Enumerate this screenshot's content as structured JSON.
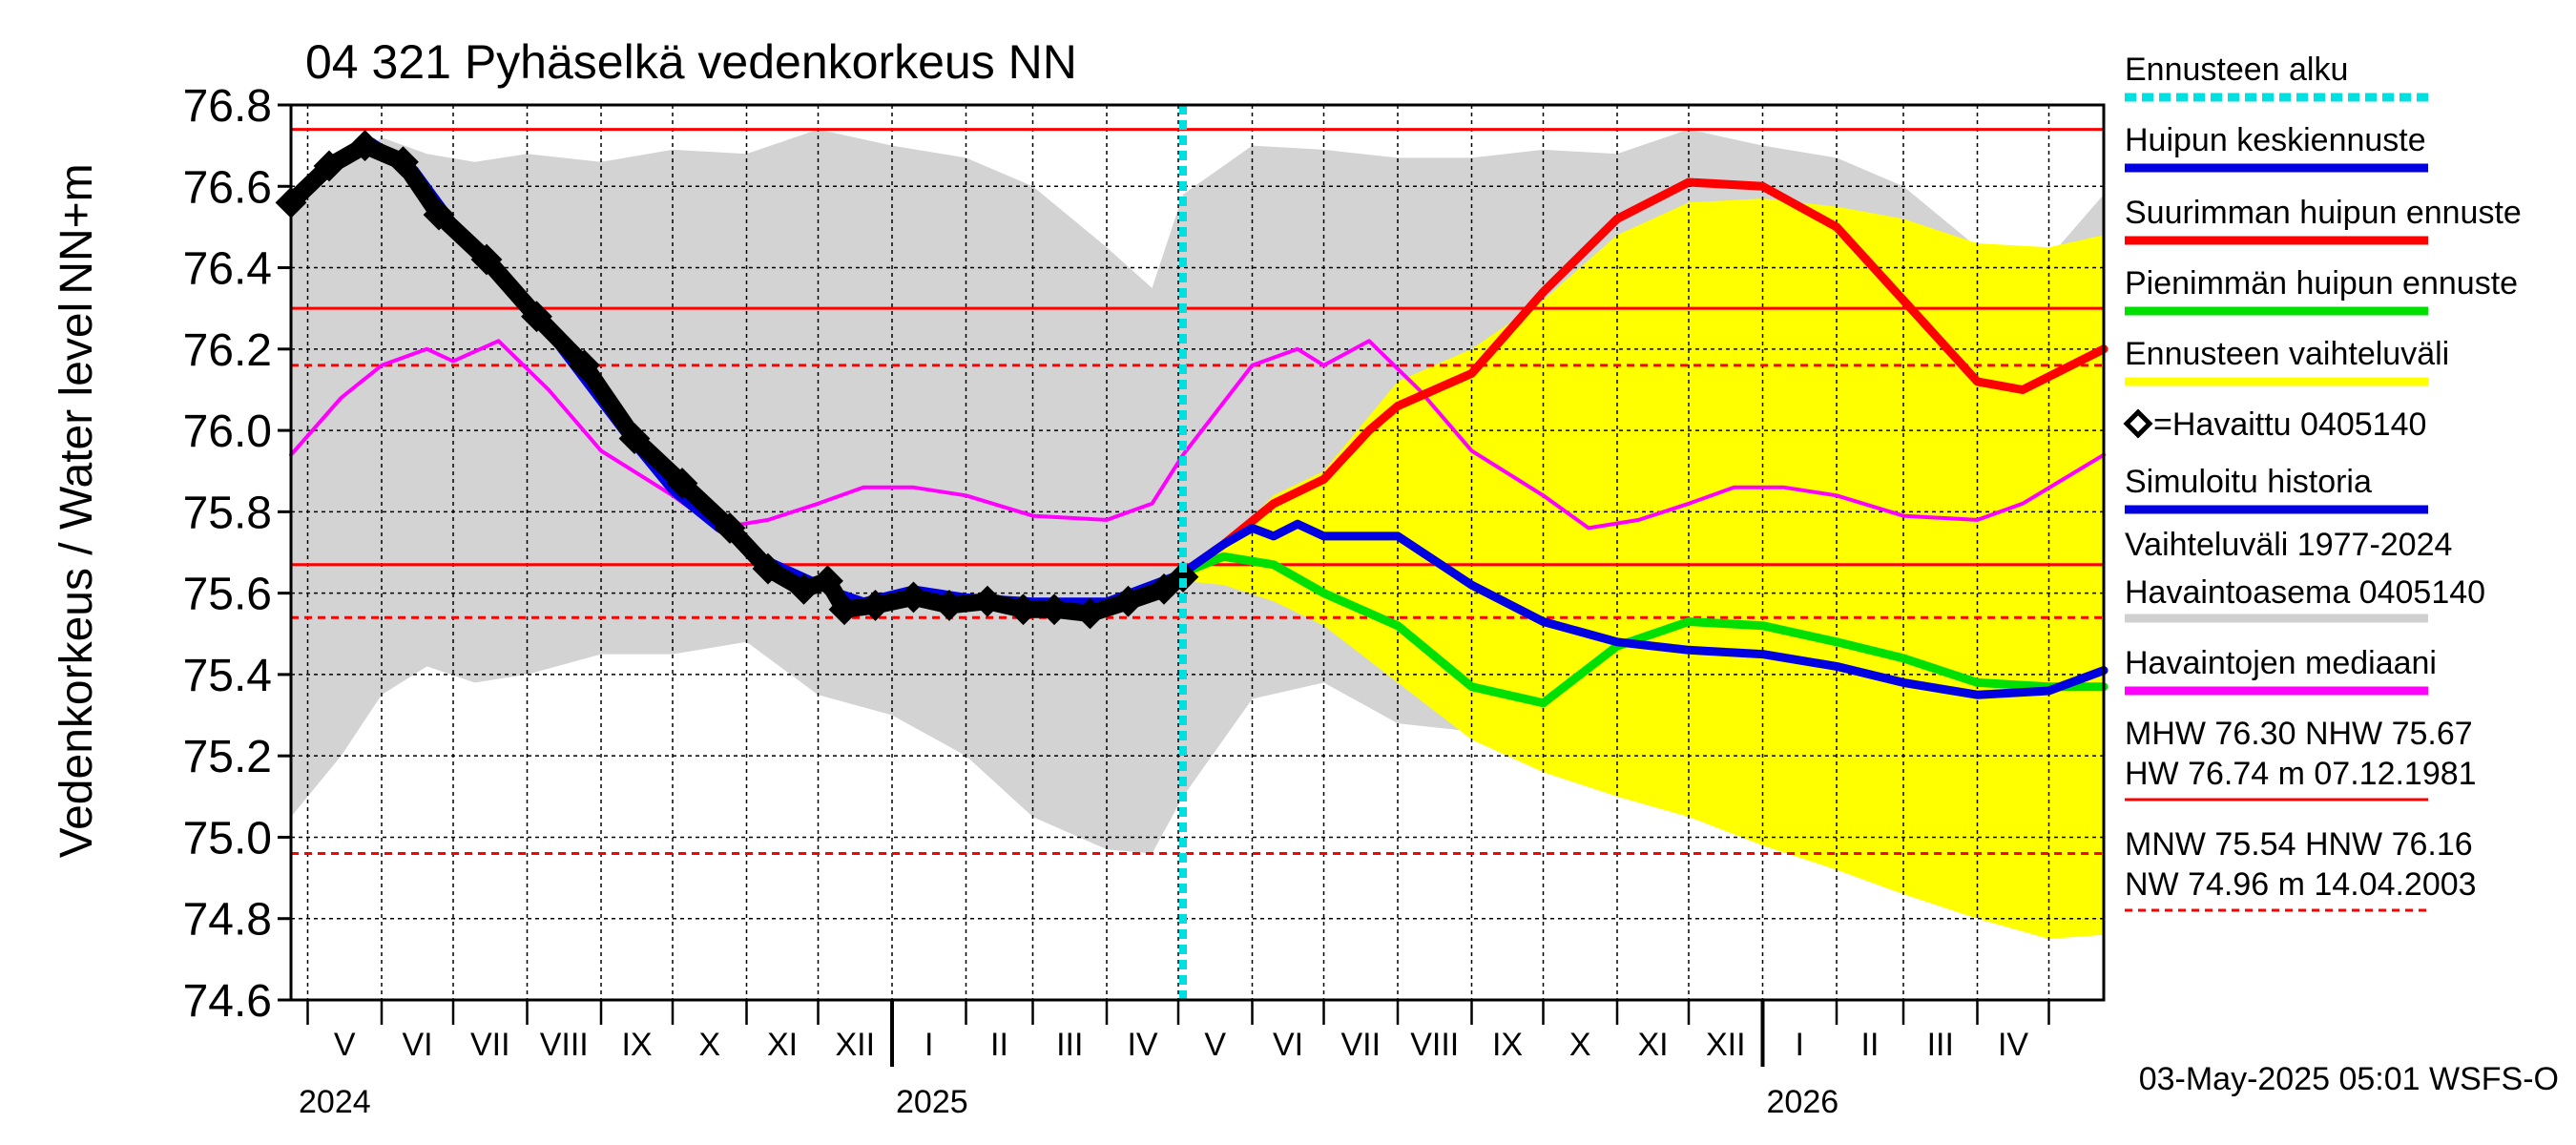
{
  "chart_data": {
    "type": "line",
    "title": "04 321 Pyhäselkä vedenkorkeus NN",
    "ylabel_main": "Vedenkorkeus / Water level",
    "ylabel_unit": "NN+m",
    "ylim": [
      74.6,
      76.8
    ],
    "yticks": [
      "74.6",
      "74.8",
      "75.0",
      "75.2",
      "75.4",
      "75.6",
      "75.8",
      "76.0",
      "76.2",
      "76.4",
      "76.6",
      "76.8"
    ],
    "x_start": "2024-04-24",
    "x_end": "2026-05-24",
    "forecast_start": "2025-05-03",
    "month_labels": [
      "V",
      "VI",
      "VII",
      "VIII",
      "IX",
      "X",
      "XI",
      "XII",
      "I",
      "II",
      "III",
      "IV",
      "V",
      "VI",
      "VII",
      "VIII",
      "IX",
      "X",
      "XI",
      "XII",
      "I",
      "II",
      "III",
      "IV"
    ],
    "year_labels": [
      "2024",
      "2025",
      "2026"
    ],
    "thresholds": {
      "solid": [
        76.74,
        76.3,
        75.67
      ],
      "dashed": [
        76.16,
        75.54,
        74.96
      ]
    },
    "range_band": {
      "x": [
        "2024-04-24",
        "2024-05-15",
        "2024-06-01",
        "2024-06-20",
        "2024-07-10",
        "2024-08-01",
        "2024-09-01",
        "2024-10-01",
        "2024-11-01",
        "2024-12-01",
        "2025-01-01",
        "2025-02-01",
        "2025-03-01",
        "2025-04-01",
        "2025-04-20",
        "2025-05-03",
        "2025-06-01",
        "2025-07-01",
        "2025-08-01",
        "2025-09-01",
        "2025-10-01",
        "2025-11-01",
        "2025-12-01",
        "2026-01-01",
        "2026-02-01",
        "2026-03-01",
        "2026-04-01",
        "2026-04-20",
        "2026-05-24"
      ],
      "upper": [
        76.54,
        76.64,
        76.72,
        76.68,
        76.66,
        76.68,
        76.66,
        76.69,
        76.68,
        76.74,
        76.7,
        76.67,
        76.6,
        76.45,
        76.35,
        76.58,
        76.7,
        76.69,
        76.67,
        76.67,
        76.69,
        76.68,
        76.74,
        76.7,
        76.67,
        76.6,
        76.45,
        76.35,
        76.58
      ],
      "lower": [
        75.05,
        75.2,
        75.35,
        75.42,
        75.38,
        75.4,
        75.45,
        75.45,
        75.48,
        75.35,
        75.3,
        75.2,
        75.05,
        74.97,
        74.96,
        75.1,
        75.34,
        75.38,
        75.28,
        75.26,
        75.22,
        75.18,
        75.1,
        75.07,
        75.05,
        75.0,
        74.97,
        74.96,
        75.08
      ]
    },
    "forecast_band": {
      "x": [
        "2025-05-03",
        "2025-05-20",
        "2025-06-10",
        "2025-07-01",
        "2025-08-01",
        "2025-09-01",
        "2025-10-01",
        "2025-11-01",
        "2025-12-01",
        "2026-01-01",
        "2026-02-01",
        "2026-03-01",
        "2026-04-01",
        "2026-05-01",
        "2026-05-24"
      ],
      "upper": [
        75.64,
        75.72,
        75.84,
        75.9,
        76.12,
        76.2,
        76.32,
        76.48,
        76.56,
        76.57,
        76.55,
        76.52,
        76.46,
        76.45,
        76.48
      ],
      "lower": [
        75.63,
        75.62,
        75.58,
        75.52,
        75.38,
        75.24,
        75.16,
        75.1,
        75.05,
        74.98,
        74.92,
        74.86,
        74.8,
        74.75,
        74.76
      ]
    },
    "series": [
      {
        "name": "Huipun keskiennuste",
        "color": "#0000e0",
        "x": [
          "2024-04-24",
          "2024-05-15",
          "2024-05-28",
          "2024-06-15",
          "2024-07-10",
          "2024-08-10",
          "2024-09-10",
          "2024-10-01",
          "2024-10-20",
          "2024-11-10",
          "2024-12-10",
          "2024-12-20",
          "2025-01-10",
          "2025-02-01",
          "2025-03-01",
          "2025-04-01",
          "2025-05-03",
          "2025-05-20",
          "2025-06-01",
          "2025-06-10",
          "2025-06-20",
          "2025-07-01",
          "2025-08-01",
          "2025-09-01",
          "2025-10-01",
          "2025-11-01",
          "2025-12-01",
          "2026-01-01",
          "2026-02-01",
          "2026-03-01",
          "2026-04-01",
          "2026-05-01",
          "2026-05-24"
        ],
        "y": [
          76.56,
          76.66,
          76.71,
          76.64,
          76.44,
          76.24,
          76.0,
          75.85,
          75.76,
          75.68,
          75.6,
          75.58,
          75.61,
          75.59,
          75.58,
          75.58,
          75.65,
          75.72,
          75.76,
          75.74,
          75.77,
          75.74,
          75.74,
          75.62,
          75.53,
          75.48,
          75.46,
          75.45,
          75.42,
          75.38,
          75.35,
          75.36,
          75.41
        ]
      },
      {
        "name": "Suurimman huipun ennuste",
        "color": "#ff0000",
        "x": [
          "2025-05-03",
          "2025-05-20",
          "2025-06-10",
          "2025-07-01",
          "2025-07-20",
          "2025-08-01",
          "2025-09-01",
          "2025-10-01",
          "2025-11-01",
          "2025-12-01",
          "2026-01-01",
          "2026-02-01",
          "2026-03-01",
          "2026-04-01",
          "2026-04-20",
          "2026-05-24"
        ],
        "y": [
          75.65,
          75.72,
          75.82,
          75.88,
          76.0,
          76.06,
          76.14,
          76.34,
          76.52,
          76.61,
          76.6,
          76.5,
          76.32,
          76.12,
          76.1,
          76.2
        ]
      },
      {
        "name": "Pienimmän huipun ennuste",
        "color": "#00e000",
        "x": [
          "2025-05-03",
          "2025-05-20",
          "2025-06-10",
          "2025-07-01",
          "2025-08-01",
          "2025-09-01",
          "2025-10-01",
          "2025-11-01",
          "2025-12-01",
          "2026-01-01",
          "2026-02-01",
          "2026-03-01",
          "2026-04-01",
          "2026-05-01",
          "2026-05-24"
        ],
        "y": [
          75.65,
          75.69,
          75.67,
          75.6,
          75.52,
          75.37,
          75.33,
          75.47,
          75.53,
          75.52,
          75.48,
          75.44,
          75.38,
          75.37,
          75.37
        ]
      },
      {
        "name": "Simuloitu historia",
        "color": "#0000e0",
        "x": [
          "2024-04-24",
          "2024-05-15",
          "2024-05-28",
          "2024-06-15",
          "2024-07-10",
          "2024-08-10",
          "2024-09-10",
          "2024-10-01",
          "2024-10-20",
          "2024-11-10",
          "2024-12-10",
          "2024-12-20",
          "2025-01-10",
          "2025-02-01",
          "2025-03-01",
          "2025-04-01",
          "2025-05-03"
        ],
        "y": [
          76.56,
          76.66,
          76.71,
          76.64,
          76.44,
          76.24,
          76.0,
          75.85,
          75.76,
          75.68,
          75.6,
          75.58,
          75.61,
          75.59,
          75.58,
          75.58,
          75.65
        ]
      },
      {
        "name": "Havaintojen mediaani",
        "color": "#ff00ff",
        "x": [
          "2024-04-24",
          "2024-05-15",
          "2024-06-01",
          "2024-06-20",
          "2024-07-01",
          "2024-07-20",
          "2024-08-10",
          "2024-09-01",
          "2024-10-01",
          "2024-10-20",
          "2024-11-10",
          "2024-12-01",
          "2024-12-20",
          "2025-01-10",
          "2025-02-01",
          "2025-03-01",
          "2025-04-01",
          "2025-04-20",
          "2025-05-03",
          "2025-06-01",
          "2025-06-20",
          "2025-07-01",
          "2025-07-20",
          "2025-08-10",
          "2025-09-01",
          "2025-10-01",
          "2025-10-20",
          "2025-11-10",
          "2025-12-01",
          "2025-12-20",
          "2026-01-10",
          "2026-02-01",
          "2026-03-01",
          "2026-04-01",
          "2026-04-20",
          "2026-05-24"
        ],
        "y": [
          75.94,
          76.08,
          76.16,
          76.2,
          76.17,
          76.22,
          76.1,
          75.95,
          75.84,
          75.76,
          75.78,
          75.82,
          75.86,
          75.86,
          75.84,
          75.79,
          75.78,
          75.82,
          75.94,
          76.16,
          76.2,
          76.16,
          76.22,
          76.1,
          75.95,
          75.84,
          75.76,
          75.78,
          75.82,
          75.86,
          75.86,
          75.84,
          75.79,
          75.78,
          75.82,
          75.94
        ]
      },
      {
        "name": "=Havaittu 0405140",
        "color": "#000000",
        "x": [
          "2024-04-24",
          "2024-05-10",
          "2024-05-25",
          "2024-06-10",
          "2024-06-25",
          "2024-07-15",
          "2024-08-05",
          "2024-08-25",
          "2024-09-15",
          "2024-10-05",
          "2024-10-25",
          "2024-11-10",
          "2024-11-25",
          "2024-12-05",
          "2024-12-12",
          "2024-12-25",
          "2025-01-10",
          "2025-01-25",
          "2025-02-10",
          "2025-02-25",
          "2025-03-10",
          "2025-03-25",
          "2025-04-10",
          "2025-04-25",
          "2025-05-03"
        ],
        "y": [
          76.56,
          76.65,
          76.7,
          76.66,
          76.53,
          76.42,
          76.28,
          76.16,
          75.98,
          75.87,
          75.76,
          75.66,
          75.61,
          75.63,
          75.56,
          75.57,
          75.59,
          75.57,
          75.58,
          75.56,
          75.56,
          75.55,
          75.58,
          75.61,
          75.64
        ]
      }
    ],
    "legend": [
      {
        "label": "Ennusteen alku",
        "color": "#00e0e0",
        "style": "dashed"
      },
      {
        "label": "Huipun keskiennuste",
        "color": "#0000e0",
        "style": "solid"
      },
      {
        "label": "Suurimman huipun ennuste",
        "color": "#ff0000",
        "style": "solid"
      },
      {
        "label": "Pienimmän huipun ennuste",
        "color": "#00e000",
        "style": "solid"
      },
      {
        "label": "Ennusteen vaihteluväli",
        "color": "#ffff00",
        "style": "solid"
      },
      {
        "label": "=Havaittu 0405140",
        "color": "#000000",
        "style": "marker"
      },
      {
        "label": "Simuloitu historia",
        "color": "#0000e0",
        "style": "solid"
      },
      {
        "label": "Vaihteluväli 1977-2024",
        "label2": " Havaintoasema 0405140",
        "color": "#d0d0d0",
        "style": "solid"
      },
      {
        "label": "Havaintojen mediaani",
        "color": "#ff00ff",
        "style": "solid"
      },
      {
        "label": "MHW  76.30 NHW  75.67",
        "label2": "HW  76.74 m 07.12.1981",
        "color": "#ff0000",
        "style": "solid"
      },
      {
        "label": "MNW  75.54 HNW  76.16",
        "label2": "NW  74.96 m 14.04.2003",
        "color": "#ff0000",
        "style": "dashed"
      }
    ],
    "footer": "03-May-2025 05:01 WSFS-O",
    "colors": {
      "range_band": "#d3d3d3",
      "forecast_band": "#ffff00",
      "forecast_start": "#00e0e0",
      "threshold": "#ff0000",
      "grid": "#000000"
    }
  }
}
